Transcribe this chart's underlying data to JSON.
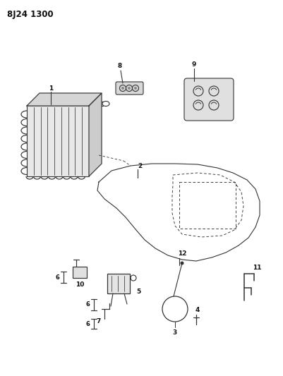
{
  "title": "8J24 1300",
  "background_color": "#ffffff",
  "line_color": "#333333",
  "fig_width": 4.02,
  "fig_height": 5.33,
  "dpi": 100
}
